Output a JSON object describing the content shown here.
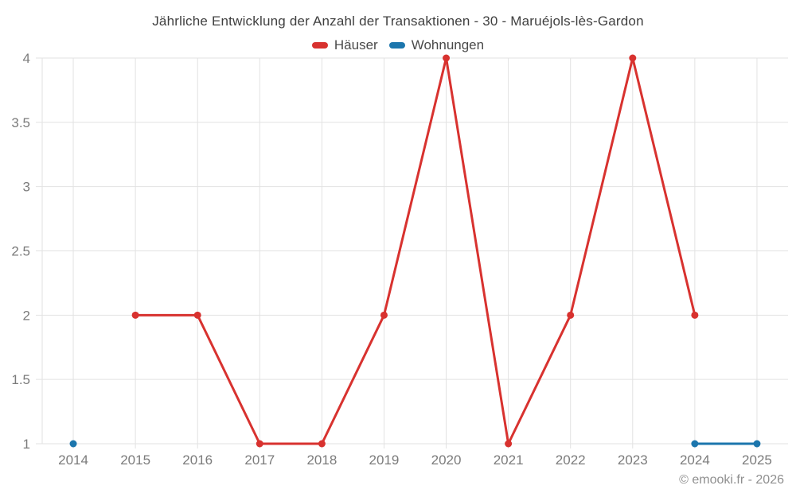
{
  "title": "Jährliche Entwicklung der Anzahl der Transaktionen - 30 - Maruéjols-lès-Gardon",
  "footer": {
    "copyright": "© emooki.fr - 2026"
  },
  "colors": {
    "haeuser": "#d8322f",
    "wohnungen": "#1c76ad",
    "grid": "#e2e2e2",
    "axis_label": "#7b7b7b",
    "title_text": "#3f3f3f",
    "legend_text": "#4a4a4a",
    "copyright_text": "#8f8f8f"
  },
  "chart_data": {
    "type": "line",
    "title": "Jährliche Entwicklung der Anzahl der Transaktionen - 30 - Maruéjols-lès-Gardon",
    "categories": [
      "2014",
      "2015",
      "2016",
      "2017",
      "2018",
      "2019",
      "2020",
      "2021",
      "2022",
      "2023",
      "2024",
      "2025"
    ],
    "series": [
      {
        "name": "Häuser",
        "color": "#d8322f",
        "values": [
          null,
          2,
          2,
          1,
          1,
          2,
          4,
          1,
          2,
          4,
          2,
          null
        ]
      },
      {
        "name": "Wohnungen",
        "color": "#1c76ad",
        "values": [
          1,
          null,
          null,
          null,
          null,
          null,
          null,
          null,
          null,
          null,
          1,
          1
        ]
      }
    ],
    "xlabel": "",
    "ylabel": "",
    "ylim": [
      1,
      4
    ],
    "yticks": [
      1,
      1.5,
      2,
      2.5,
      3,
      3.5,
      4
    ],
    "grid": true,
    "legend_position": "top"
  }
}
